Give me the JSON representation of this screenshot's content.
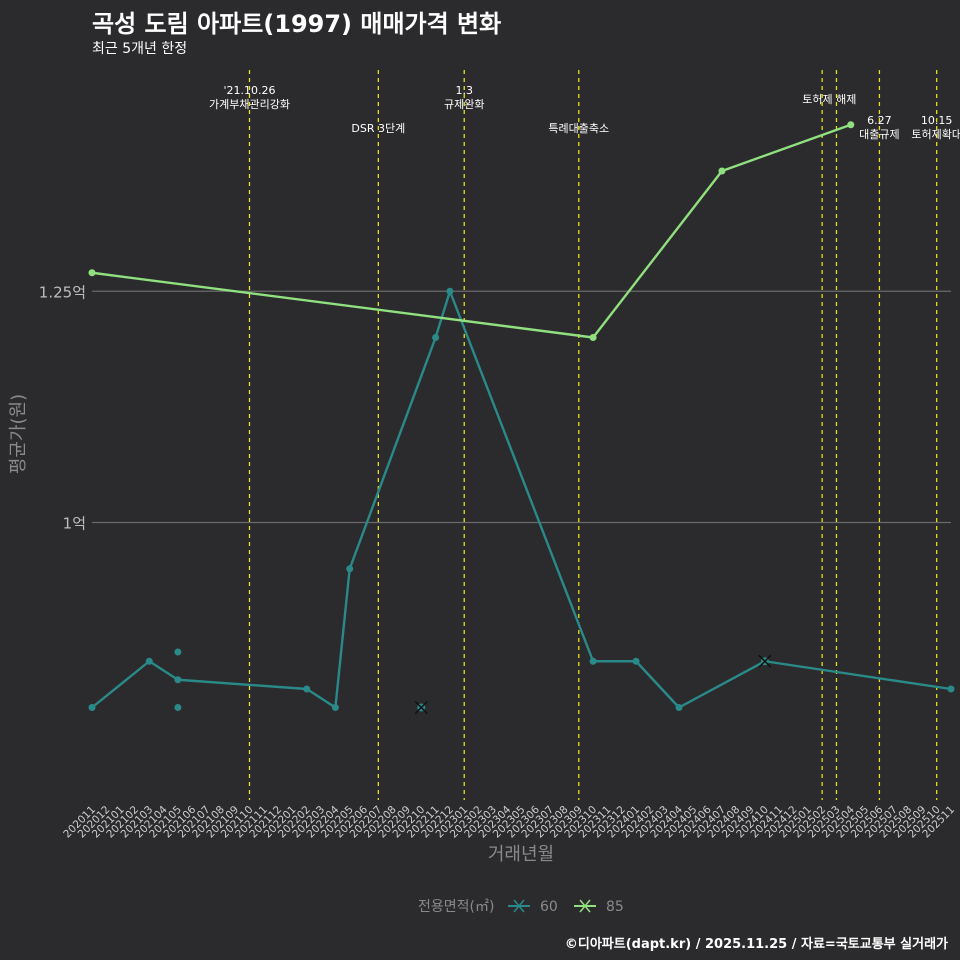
{
  "header": {
    "title": "곡성 도림 아파트(1997) 매매가격 변화",
    "subtitle": "최근 5개년 한정"
  },
  "footer": {
    "caption": "©디아파트(dapt.kr) / 2025.11.25 / 자료=국토교통부 실거래가"
  },
  "colors": {
    "background": "#2b2a2c",
    "series_60": "#2a8a8a",
    "series_85": "#90e080",
    "event_line": "#e6e020",
    "grid": "#6a6a6a",
    "axis_text": "#8a8a8a"
  },
  "chart_data": {
    "type": "line",
    "xlabel": "거래년월",
    "ylabel": "평균가(원)",
    "ylim": [
      0.7,
      1.5
    ],
    "y_unit": "억",
    "y_ticks": [
      {
        "value": 1.0,
        "label": "1억"
      },
      {
        "value": 1.25,
        "label": "1.25억"
      }
    ],
    "categories": [
      "202011",
      "202012",
      "202101",
      "202102",
      "202103",
      "202104",
      "202105",
      "202106",
      "202107",
      "202108",
      "202109",
      "202110",
      "202111",
      "202112",
      "202201",
      "202202",
      "202203",
      "202204",
      "202205",
      "202206",
      "202207",
      "202208",
      "202209",
      "202210",
      "202211",
      "202212",
      "202301",
      "202302",
      "202303",
      "202304",
      "202305",
      "202306",
      "202307",
      "202308",
      "202309",
      "202310",
      "202311",
      "202312",
      "202401",
      "202402",
      "202403",
      "202404",
      "202405",
      "202406",
      "202407",
      "202408",
      "202409",
      "202410",
      "202411",
      "202412",
      "202501",
      "202502",
      "202503",
      "202504",
      "202505",
      "202506",
      "202507",
      "202508",
      "202509",
      "202510",
      "202511"
    ],
    "legend_title": "전용면적(㎡)",
    "series": [
      {
        "name": "60",
        "color": "#2a8a8a",
        "line": [
          {
            "x": "202011",
            "y": 0.8
          },
          {
            "x": "202103",
            "y": 0.85
          },
          {
            "x": "202105",
            "y": 0.83
          },
          {
            "x": "202202",
            "y": 0.82
          },
          {
            "x": "202204",
            "y": 0.8
          },
          {
            "x": "202205",
            "y": 0.95
          },
          {
            "x": "202211",
            "y": 1.2
          },
          {
            "x": "202212",
            "y": 1.25
          },
          {
            "x": "202310",
            "y": 0.85
          },
          {
            "x": "202401",
            "y": 0.85
          },
          {
            "x": "202404",
            "y": 0.8
          },
          {
            "x": "202410",
            "y": 0.85
          },
          {
            "x": "202511",
            "y": 0.82
          }
        ],
        "extra_points": [
          {
            "x": "202105",
            "y": 0.86
          },
          {
            "x": "202105",
            "y": 0.8
          }
        ],
        "cancelled": [
          {
            "x": "202210",
            "y": 0.8
          },
          {
            "x": "202410",
            "y": 0.85
          }
        ]
      },
      {
        "name": "85",
        "color": "#90e080",
        "line": [
          {
            "x": "202011",
            "y": 1.27
          },
          {
            "x": "202310",
            "y": 1.2
          },
          {
            "x": "202407",
            "y": 1.38
          },
          {
            "x": "202504",
            "y": 1.43
          }
        ]
      }
    ],
    "events": [
      {
        "x": "202110",
        "label": "'21.10.26\n가계부채관리강화",
        "row": "top"
      },
      {
        "x": "202207",
        "label": "DSR 3단계",
        "row": "mid"
      },
      {
        "x": "202301",
        "label": "1.3\n규제완화",
        "row": "top"
      },
      {
        "x": "202309",
        "label": "특례대출축소",
        "row": "mid"
      },
      {
        "x": "202502",
        "label": "토허제 해제",
        "row": "top2",
        "pair_x": "202503"
      },
      {
        "x": "202506",
        "label": "6.27\n대출규제",
        "row": "side"
      },
      {
        "x": "202510",
        "label": "10.15\n토허제확대",
        "row": "side"
      }
    ]
  }
}
